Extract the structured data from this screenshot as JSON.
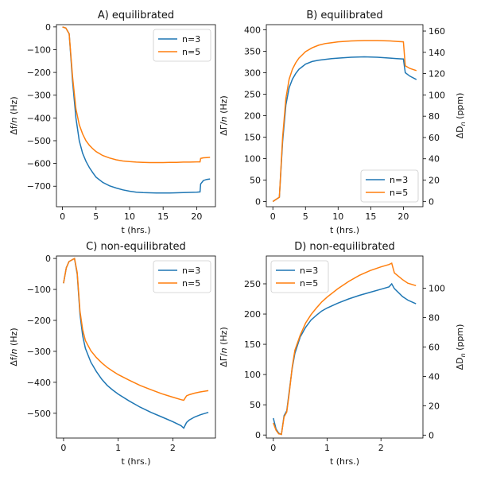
{
  "colors": {
    "n3": "#1f77b4",
    "n5": "#ff7f0e",
    "axis": "#000000"
  },
  "chart_data": [
    {
      "id": "A",
      "type": "line",
      "title": "A) equilibrated",
      "xlabel": "t (hrs.)",
      "ylabel": "Δf/n (Hz)",
      "xlim": [
        -0.9,
        22.8
      ],
      "ylim": [
        -790,
        10
      ],
      "xticks": [
        0,
        5,
        10,
        15,
        20
      ],
      "yticks": [
        0,
        -100,
        -200,
        -300,
        -400,
        -500,
        -600,
        -700
      ],
      "legend": {
        "position": "top-right",
        "entries": [
          "n=3",
          "n=5"
        ]
      },
      "series": [
        {
          "name": "n=3",
          "color": "#1f77b4",
          "x": [
            0,
            0.5,
            1,
            1.5,
            2,
            2.5,
            3,
            3.5,
            4,
            4.5,
            5,
            6,
            7,
            8,
            9,
            10,
            11,
            12,
            13,
            14,
            15,
            16,
            17,
            18,
            19,
            20,
            20.5,
            20.6,
            21,
            21.5,
            22
          ],
          "y": [
            0,
            -5,
            -30,
            -240,
            -400,
            -500,
            -555,
            -590,
            -618,
            -640,
            -660,
            -683,
            -698,
            -708,
            -716,
            -722,
            -726,
            -728,
            -729,
            -730,
            -730,
            -730,
            -729,
            -728,
            -727,
            -726,
            -725,
            -690,
            -675,
            -670,
            -668
          ]
        },
        {
          "name": "n=5",
          "color": "#ff7f0e",
          "x": [
            0,
            0.5,
            1,
            1.5,
            2,
            2.5,
            3,
            3.5,
            4,
            4.5,
            5,
            6,
            7,
            8,
            9,
            10,
            11,
            12,
            13,
            14,
            15,
            16,
            17,
            18,
            19,
            20,
            20.5,
            20.6,
            21,
            21.5,
            22
          ],
          "y": [
            0,
            -5,
            -30,
            -220,
            -360,
            -430,
            -470,
            -500,
            -520,
            -535,
            -548,
            -565,
            -576,
            -584,
            -589,
            -592,
            -594,
            -595,
            -596,
            -596,
            -596,
            -595,
            -595,
            -594,
            -594,
            -593,
            -593,
            -578,
            -575,
            -574,
            -573
          ]
        }
      ]
    },
    {
      "id": "B",
      "type": "line",
      "title": "B) equilibrated",
      "xlabel": "t (hrs.)",
      "ylabel": "ΔΓ/n (Hz)",
      "ylabel_right": "ΔD_n (ppm)",
      "xlim": [
        -1.0,
        23.0
      ],
      "ylim": [
        -12,
        412
      ],
      "xticks": [
        0,
        5,
        10,
        15,
        20
      ],
      "yticks": [
        0,
        50,
        100,
        150,
        200,
        250,
        300,
        350,
        400
      ],
      "ylim_right": [
        -5,
        166
      ],
      "yticks_right": [
        0,
        20,
        40,
        60,
        80,
        100,
        120,
        140,
        160
      ],
      "legend": {
        "position": "bottom-right",
        "entries": [
          "n=3",
          "n=5"
        ]
      },
      "series": [
        {
          "name": "n=3",
          "color": "#1f77b4",
          "x": [
            0,
            0.5,
            1,
            1.5,
            2,
            2.5,
            3,
            3.5,
            4,
            5,
            6,
            7,
            8,
            9,
            10,
            12,
            14,
            16,
            18,
            19,
            20,
            20.3,
            21,
            22
          ],
          "y": [
            0,
            5,
            10,
            140,
            225,
            265,
            285,
            298,
            308,
            320,
            326,
            329,
            331,
            333,
            334,
            336,
            337,
            336,
            334,
            333,
            332,
            300,
            292,
            284
          ]
        },
        {
          "name": "n=5",
          "color": "#ff7f0e",
          "x": [
            0,
            0.5,
            1,
            1.5,
            2,
            2.5,
            3,
            3.5,
            4,
            5,
            6,
            7,
            8,
            9,
            10,
            12,
            14,
            16,
            18,
            19,
            20,
            20.3,
            21,
            22
          ],
          "y": [
            0,
            5,
            10,
            150,
            240,
            285,
            308,
            323,
            334,
            349,
            358,
            364,
            368,
            370,
            372,
            374,
            375,
            375,
            374,
            373,
            372,
            316,
            310,
            305
          ]
        }
      ]
    },
    {
      "id": "C",
      "type": "line",
      "title": "C) non-equilibrated",
      "xlabel": "t (hrs.)",
      "ylabel": "Δf/n (Hz)",
      "xlim": [
        -0.13,
        2.78
      ],
      "ylim": [
        -580,
        8
      ],
      "xticks": [
        0,
        1,
        2
      ],
      "yticks": [
        0,
        -100,
        -200,
        -300,
        -400,
        -500
      ],
      "legend": {
        "position": "top-right",
        "entries": [
          "n=3",
          "n=5"
        ]
      },
      "series": [
        {
          "name": "n=3",
          "color": "#1f77b4",
          "x": [
            0,
            0.05,
            0.1,
            0.15,
            0.2,
            0.25,
            0.3,
            0.35,
            0.4,
            0.5,
            0.6,
            0.7,
            0.8,
            0.9,
            1.0,
            1.2,
            1.4,
            1.6,
            1.8,
            2.0,
            2.15,
            2.2,
            2.25,
            2.3,
            2.4,
            2.5,
            2.65
          ],
          "y": [
            -80,
            -30,
            -10,
            -5,
            0,
            -50,
            -180,
            -250,
            -290,
            -335,
            -365,
            -390,
            -410,
            -425,
            -438,
            -460,
            -480,
            -497,
            -512,
            -527,
            -540,
            -548,
            -530,
            -522,
            -512,
            -505,
            -497
          ]
        },
        {
          "name": "n=5",
          "color": "#ff7f0e",
          "x": [
            0,
            0.05,
            0.1,
            0.15,
            0.2,
            0.25,
            0.3,
            0.35,
            0.4,
            0.5,
            0.6,
            0.7,
            0.8,
            0.9,
            1.0,
            1.2,
            1.4,
            1.6,
            1.8,
            2.0,
            2.15,
            2.2,
            2.25,
            2.3,
            2.4,
            2.5,
            2.65
          ],
          "y": [
            -80,
            -30,
            -10,
            -5,
            0,
            -45,
            -170,
            -230,
            -265,
            -298,
            -320,
            -337,
            -352,
            -364,
            -375,
            -393,
            -410,
            -424,
            -437,
            -448,
            -456,
            -458,
            -444,
            -440,
            -435,
            -431,
            -427
          ]
        }
      ]
    },
    {
      "id": "D",
      "type": "line",
      "title": "D) non-equilibrated",
      "xlabel": "t (hrs.)",
      "ylabel": "ΔΓ/n (Hz)",
      "ylabel_right": "ΔD_n (ppm)",
      "xlim": [
        -0.13,
        2.78
      ],
      "ylim": [
        -5,
        296
      ],
      "xticks": [
        0,
        1,
        2
      ],
      "yticks": [
        0,
        50,
        100,
        150,
        200,
        250
      ],
      "ylim_right": [
        -2,
        122
      ],
      "yticks_right": [
        0,
        20,
        40,
        60,
        80,
        100
      ],
      "legend": {
        "position": "top-left",
        "entries": [
          "n=3",
          "n=5"
        ]
      },
      "series": [
        {
          "name": "n=3",
          "color": "#1f77b4",
          "x": [
            0,
            0.05,
            0.1,
            0.15,
            0.2,
            0.25,
            0.3,
            0.35,
            0.4,
            0.5,
            0.6,
            0.7,
            0.8,
            0.9,
            1.0,
            1.2,
            1.4,
            1.6,
            1.8,
            2.0,
            2.15,
            2.2,
            2.25,
            2.4,
            2.5,
            2.65
          ],
          "y": [
            28,
            10,
            3,
            1,
            32,
            40,
            75,
            110,
            135,
            162,
            178,
            190,
            198,
            205,
            210,
            218,
            225,
            231,
            236,
            241,
            245,
            250,
            242,
            229,
            223,
            217
          ]
        },
        {
          "name": "n=5",
          "color": "#ff7f0e",
          "x": [
            0,
            0.05,
            0.1,
            0.15,
            0.2,
            0.25,
            0.3,
            0.35,
            0.4,
            0.5,
            0.6,
            0.7,
            0.8,
            0.9,
            1.0,
            1.2,
            1.4,
            1.6,
            1.8,
            2.0,
            2.15,
            2.2,
            2.25,
            2.4,
            2.5,
            2.65
          ],
          "y": [
            20,
            8,
            2,
            1,
            30,
            38,
            72,
            112,
            140,
            165,
            185,
            199,
            210,
            220,
            228,
            242,
            254,
            264,
            272,
            278,
            282,
            284,
            268,
            257,
            251,
            247
          ]
        }
      ]
    }
  ]
}
